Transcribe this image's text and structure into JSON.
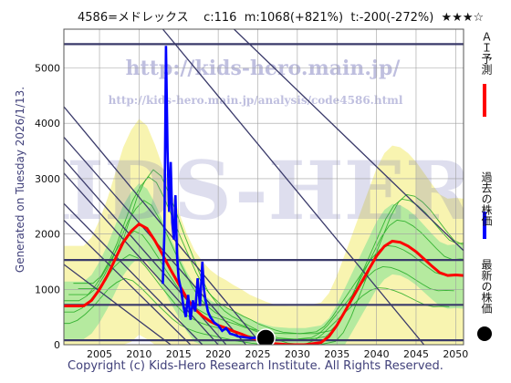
{
  "header": {
    "text": "4586=メドレックス    c:116  m:1068(+821%)  t:-200(-272%)  ★★★☆"
  },
  "side_label": "Generated on Tuesday 2026/1/13.",
  "footer": "Copyright (c) Kids-Hero Research Institute. All Rights Reserved.",
  "watermark": {
    "line1": "http://kids-hero.main.jp/",
    "line2": "http://kids-hero.main.jp/analysis/code4586.html",
    "big": "KIDS-HERO"
  },
  "legend": {
    "ai": "ＡＩ予測",
    "past": "過去の株価",
    "latest": "最新の株価"
  },
  "colors": {
    "ai": "#ff0000",
    "past": "#0000ff",
    "latest": "#000000",
    "green": "#22aa22",
    "yellow": "#f8f4b0",
    "lightgreen": "#99e699",
    "grid": "#a0a0a0",
    "trend": "#3a3a6a"
  },
  "chart_data": {
    "type": "line",
    "xlim": [
      2000.5,
      2051
    ],
    "ylim": [
      0,
      5700
    ],
    "x_ticks": [
      2005,
      2010,
      2015,
      2020,
      2025,
      2030,
      2035,
      2040,
      2045,
      2050
    ],
    "y_ticks": [
      0,
      1000,
      2000,
      3000,
      4000,
      5000
    ],
    "horizontal_lines": [
      5430,
      1530,
      720,
      80
    ],
    "latest_point": {
      "x": 2026.0,
      "y": 116
    },
    "trend_lines": [
      [
        [
          2000.5,
          4300
        ],
        [
          2025.5,
          0
        ]
      ],
      [
        [
          2000.5,
          3750
        ],
        [
          2023.5,
          0
        ]
      ],
      [
        [
          2000.5,
          3350
        ],
        [
          2021.0,
          0
        ]
      ],
      [
        [
          2000.5,
          3100
        ],
        [
          2020.0,
          0
        ]
      ],
      [
        [
          2000.5,
          2550
        ],
        [
          2018.0,
          0
        ]
      ],
      [
        [
          2000.5,
          2250
        ],
        [
          2016.5,
          0
        ]
      ],
      [
        [
          2000.5,
          1450
        ],
        [
          2014.0,
          0
        ]
      ],
      [
        [
          2013.0,
          5700
        ],
        [
          2046.0,
          0
        ]
      ],
      [
        [
          2022.0,
          5700
        ],
        [
          2051.0,
          1700
        ]
      ]
    ],
    "ai_forecast": [
      [
        2000.5,
        700
      ],
      [
        2003,
        700
      ],
      [
        2004,
        800
      ],
      [
        2005,
        1000
      ],
      [
        2006,
        1250
      ],
      [
        2007,
        1550
      ],
      [
        2008,
        1850
      ],
      [
        2009,
        2050
      ],
      [
        2010,
        2180
      ],
      [
        2011,
        2100
      ],
      [
        2012,
        1880
      ],
      [
        2013,
        1620
      ],
      [
        2014,
        1350
      ],
      [
        2015,
        1100
      ],
      [
        2016,
        850
      ],
      [
        2017,
        650
      ],
      [
        2018,
        520
      ],
      [
        2019,
        420
      ],
      [
        2020,
        350
      ],
      [
        2021,
        300
      ],
      [
        2022,
        240
      ],
      [
        2023,
        190
      ],
      [
        2024,
        130
      ],
      [
        2025,
        90
      ],
      [
        2026,
        50
      ],
      [
        2027,
        20
      ],
      [
        2029,
        0
      ],
      [
        2030,
        0
      ],
      [
        2031,
        0
      ],
      [
        2033,
        40
      ],
      [
        2034,
        150
      ],
      [
        2035,
        350
      ],
      [
        2036,
        600
      ],
      [
        2037,
        850
      ],
      [
        2038,
        1100
      ],
      [
        2039,
        1350
      ],
      [
        2040,
        1600
      ],
      [
        2041,
        1780
      ],
      [
        2042,
        1870
      ],
      [
        2043,
        1850
      ],
      [
        2044,
        1780
      ],
      [
        2045,
        1680
      ],
      [
        2046,
        1550
      ],
      [
        2047,
        1420
      ],
      [
        2048,
        1300
      ],
      [
        2049,
        1250
      ],
      [
        2050,
        1260
      ],
      [
        2051,
        1250
      ]
    ],
    "past_prices": [
      [
        2013.0,
        1100
      ],
      [
        2013.2,
        2000
      ],
      [
        2013.4,
        5400
      ],
      [
        2013.6,
        3500
      ],
      [
        2013.8,
        2400
      ],
      [
        2014.0,
        3300
      ],
      [
        2014.2,
        2200
      ],
      [
        2014.4,
        1900
      ],
      [
        2014.6,
        2700
      ],
      [
        2014.8,
        1600
      ],
      [
        2015.0,
        1200
      ],
      [
        2015.3,
        1000
      ],
      [
        2015.6,
        700
      ],
      [
        2015.9,
        500
      ],
      [
        2016.2,
        900
      ],
      [
        2016.5,
        450
      ],
      [
        2016.8,
        800
      ],
      [
        2017.1,
        600
      ],
      [
        2017.4,
        1200
      ],
      [
        2017.7,
        700
      ],
      [
        2018.0,
        1500
      ],
      [
        2018.2,
        1000
      ],
      [
        2018.4,
        800
      ],
      [
        2018.7,
        600
      ],
      [
        2019.0,
        500
      ],
      [
        2019.5,
        400
      ],
      [
        2020.0,
        350
      ],
      [
        2020.5,
        250
      ],
      [
        2021.0,
        300
      ],
      [
        2021.5,
        200
      ],
      [
        2022.0,
        180
      ],
      [
        2022.5,
        150
      ],
      [
        2023.0,
        140
      ],
      [
        2023.5,
        130
      ],
      [
        2024.0,
        120
      ],
      [
        2024.5,
        125
      ],
      [
        2025.0,
        118
      ],
      [
        2025.5,
        116
      ],
      [
        2026.0,
        116
      ]
    ]
  }
}
